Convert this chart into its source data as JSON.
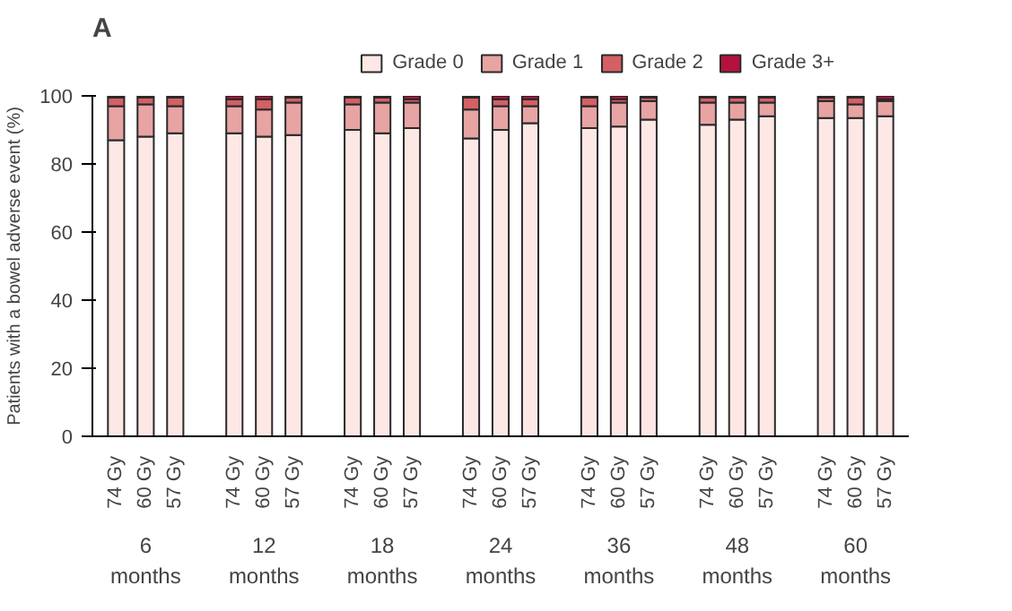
{
  "chart_data": {
    "type": "bar",
    "stacked": true,
    "title": "A",
    "ylabel": "Patients with a bowel adverse event (%)",
    "categories": [
      "74 Gy",
      "60 Gy",
      "57 Gy",
      "74 Gy",
      "60 Gy",
      "57 Gy",
      "74 Gy",
      "60 Gy",
      "57 Gy",
      "74 Gy",
      "60 Gy",
      "57 Gy",
      "74 Gy",
      "60 Gy",
      "57 Gy",
      "74 Gy",
      "60 Gy",
      "57 Gy",
      "74 Gy",
      "60 Gy",
      "57 Gy"
    ],
    "series": [
      {
        "name": "Grade 0",
        "color": "#fde8e6",
        "values": [
          87,
          88,
          89,
          89,
          88,
          88.5,
          90,
          89,
          90.5,
          87.5,
          90,
          92,
          90.5,
          91,
          93,
          91.5,
          93,
          94,
          93.5,
          93.5,
          94
        ]
      },
      {
        "name": "Grade 1",
        "color": "#e8a3a3",
        "values": [
          10,
          9.5,
          8,
          8,
          8,
          9.5,
          7.5,
          9,
          7.5,
          8.5,
          7,
          5,
          6.5,
          7,
          5.5,
          6.5,
          5,
          4,
          5,
          4,
          4.5
        ]
      },
      {
        "name": "Grade 2",
        "color": "#d45f64",
        "values": [
          2.5,
          2,
          2.5,
          2,
          3,
          1.5,
          2,
          1.5,
          1,
          3.5,
          2,
          2,
          2.5,
          1,
          1,
          1.5,
          1.5,
          1.5,
          1,
          2,
          0.5
        ]
      },
      {
        "name": "Grade 3+",
        "color": "#b5113f",
        "values": [
          0.5,
          0.5,
          0.5,
          1,
          1,
          0.5,
          0.5,
          0.5,
          1,
          0.5,
          1,
          1,
          0.5,
          1,
          0.5,
          0.5,
          0.5,
          0.5,
          0.5,
          0.5,
          1
        ]
      }
    ],
    "ylim": [
      0,
      100
    ],
    "yticks": [
      0,
      20,
      40,
      60,
      80,
      100
    ],
    "legend": "top right",
    "grid": false,
    "annotations": [
      "6 months",
      "12 months",
      "18 months",
      "24 months",
      "36 months",
      "48 months",
      "60 months"
    ]
  }
}
